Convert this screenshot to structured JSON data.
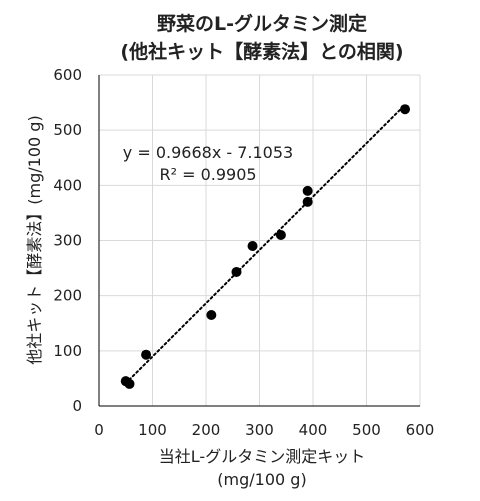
{
  "chart_data": {
    "type": "scatter",
    "title_lines": [
      "野菜のL-グルタミン測定",
      "(他社キット【酵素法】との相関)"
    ],
    "xlabel_lines": [
      "当社L-グルタミン測定キット",
      "(mg/100 g)"
    ],
    "ylabel": "他社キット【酵素法】(mg/100 g)",
    "xlim": [
      0,
      600
    ],
    "ylim": [
      0,
      600
    ],
    "xticks": [
      0,
      100,
      200,
      300,
      400,
      500,
      600
    ],
    "yticks": [
      0,
      100,
      200,
      300,
      400,
      500,
      600
    ],
    "grid": true,
    "legend": "none",
    "points": [
      {
        "x": 50,
        "y": 45
      },
      {
        "x": 57,
        "y": 40
      },
      {
        "x": 88,
        "y": 93
      },
      {
        "x": 210,
        "y": 165
      },
      {
        "x": 257,
        "y": 243
      },
      {
        "x": 287,
        "y": 290
      },
      {
        "x": 340,
        "y": 310
      },
      {
        "x": 390,
        "y": 390
      },
      {
        "x": 390,
        "y": 370
      },
      {
        "x": 572,
        "y": 538
      }
    ],
    "trendline": {
      "type": "linear",
      "slope": 0.9668,
      "intercept": -7.1053,
      "x_range": [
        50,
        572
      ],
      "style": "dotted"
    },
    "equation_text": "y = 0.9668x - 7.1053",
    "r2_text": "R² = 0.9905"
  },
  "colors": {
    "point": "#000000",
    "trendline": "#000000",
    "grid": "#d9d9d9",
    "axis": "#000000",
    "text": "#222222"
  }
}
